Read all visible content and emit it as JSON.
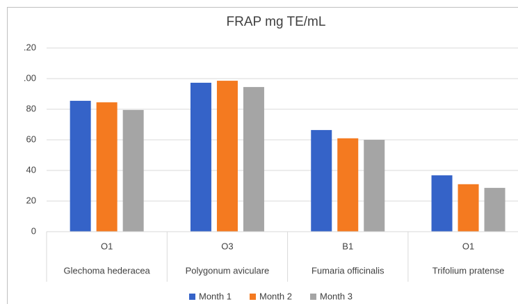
{
  "chart_data": {
    "type": "bar",
    "title": "FRAP mg TE/mL",
    "category_codes": [
      "O1",
      "O3",
      "B1",
      "O1"
    ],
    "categories": [
      "Glechoma hederacea",
      "Polygonum aviculare",
      "Fumaria officinalis",
      "Trifolium pratense"
    ],
    "series": [
      {
        "name": "Month 1",
        "color": "#3563c8",
        "values": [
          85.5,
          97.3,
          66.4,
          36.8
        ]
      },
      {
        "name": "Month 2",
        "color": "#f47a20",
        "values": [
          84.5,
          98.6,
          61,
          31
        ]
      },
      {
        "name": "Month 3",
        "color": "#a5a5a5",
        "values": [
          79.5,
          94.5,
          60,
          28.6
        ]
      }
    ],
    "ylim": [
      0,
      120
    ],
    "yticks": [
      0,
      20,
      40,
      60,
      80,
      {
        "value": 100,
        "label": ".00"
      },
      {
        "value": 120,
        "label": ".20"
      }
    ],
    "grid": true,
    "legend": "bottom"
  }
}
